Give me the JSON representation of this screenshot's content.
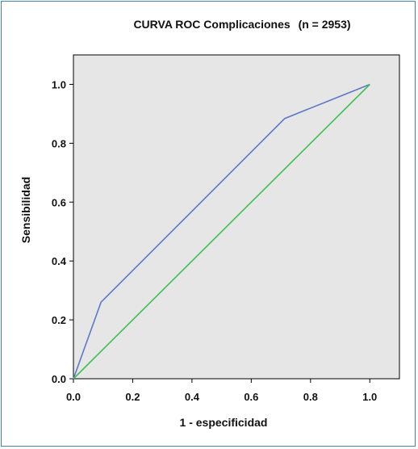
{
  "chart_data": {
    "type": "line",
    "title": "CURVA ROC Complicaciones",
    "subtitle": "(n = 2953)",
    "xlabel": "1 - especificidad",
    "ylabel": "Sensibilidad",
    "xlim": [
      0.0,
      1.1
    ],
    "ylim": [
      0.0,
      1.1
    ],
    "xticks": [
      "0.0",
      "0.2",
      "0.4",
      "0.6",
      "0.8",
      "1.0"
    ],
    "yticks": [
      "0.0",
      "0.2",
      "0.4",
      "0.6",
      "0.8",
      "1.0"
    ],
    "grid": false,
    "series": [
      {
        "color": "#5b79c8",
        "x": [
          0.0,
          0.093,
          0.713,
          1.0
        ],
        "y": [
          0.0,
          0.26,
          0.884,
          1.0
        ]
      },
      {
        "color": "#3fbf50",
        "x": [
          0.0,
          1.0
        ],
        "y": [
          0.0,
          1.0
        ]
      }
    ],
    "plot_background": "#e6e6e6"
  }
}
